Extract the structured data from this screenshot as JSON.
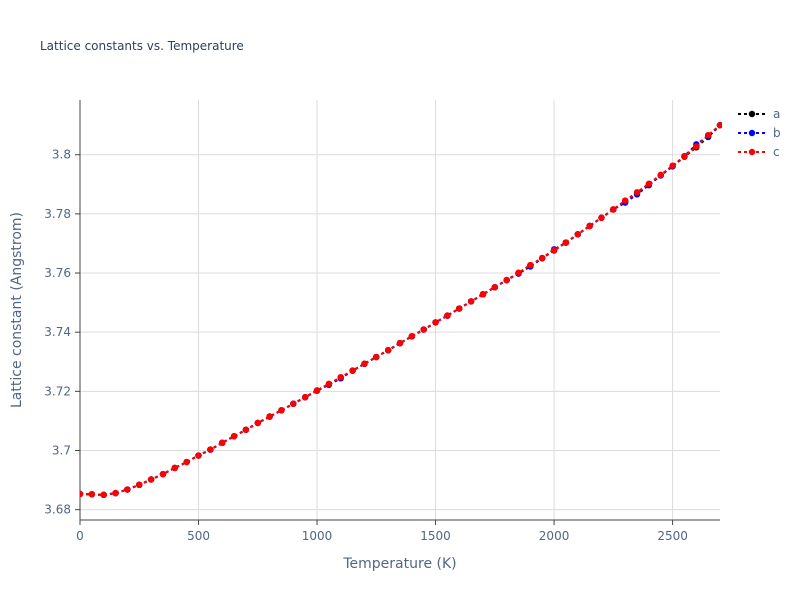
{
  "chart_data": {
    "type": "line",
    "title": "Lattice constants vs. Temperature",
    "xlabel": "Temperature (K)",
    "ylabel": "Lattice constant (Angstrom)",
    "xlim": [
      0,
      2700
    ],
    "ylim": [
      3.6765,
      3.8185
    ],
    "xticks": [
      0,
      500,
      1000,
      1500,
      2000,
      2500
    ],
    "yticks": [
      3.68,
      3.7,
      3.72,
      3.74,
      3.76,
      3.78,
      3.8
    ],
    "ytick_labels": [
      "3.68",
      "3.7",
      "3.72",
      "3.74",
      "3.76",
      "3.78",
      "3.8"
    ],
    "grid": true,
    "legend_position": "top-right",
    "x": [
      0,
      50,
      100,
      150,
      200,
      250,
      300,
      350,
      400,
      450,
      500,
      550,
      600,
      650,
      700,
      750,
      800,
      850,
      900,
      950,
      1000,
      1050,
      1100,
      1150,
      1200,
      1250,
      1300,
      1350,
      1400,
      1450,
      1500,
      1550,
      1600,
      1650,
      1700,
      1750,
      1800,
      1850,
      1900,
      1950,
      2000,
      2050,
      2100,
      2150,
      2200,
      2250,
      2300,
      2350,
      2400,
      2450,
      2500,
      2550,
      2600,
      2650,
      2700
    ],
    "series": [
      {
        "name": "a",
        "color": "#000000",
        "values": [
          3.6853,
          3.6852,
          3.685,
          3.6856,
          3.6868,
          3.6884,
          3.6902,
          3.692,
          3.6941,
          3.6961,
          3.6983,
          3.7003,
          3.7026,
          3.7048,
          3.707,
          3.7093,
          3.7115,
          3.7136,
          3.7158,
          3.718,
          3.7203,
          3.7225,
          3.7247,
          3.727,
          3.7293,
          3.7316,
          3.7339,
          3.7363,
          3.7386,
          3.7409,
          3.7433,
          3.7456,
          3.748,
          3.7504,
          3.7528,
          3.7552,
          3.7576,
          3.76,
          3.7625,
          3.765,
          3.7676,
          3.7703,
          3.7731,
          3.7759,
          3.7787,
          3.7815,
          3.7842,
          3.787,
          3.79,
          3.793,
          3.7961,
          3.7993,
          3.8025,
          3.806,
          3.81
        ]
      },
      {
        "name": "b",
        "color": "#0000ff",
        "values": [
          3.6853,
          3.6852,
          3.685,
          3.6856,
          3.6868,
          3.6884,
          3.6902,
          3.692,
          3.6941,
          3.6961,
          3.6983,
          3.7003,
          3.7026,
          3.7048,
          3.707,
          3.7093,
          3.7114,
          3.7136,
          3.7158,
          3.718,
          3.7202,
          3.7222,
          3.7244,
          3.727,
          3.7293,
          3.7316,
          3.7339,
          3.7363,
          3.7386,
          3.7409,
          3.7433,
          3.7456,
          3.748,
          3.7504,
          3.7528,
          3.7552,
          3.7576,
          3.7598,
          3.7622,
          3.765,
          3.768,
          3.7703,
          3.7731,
          3.7759,
          3.7787,
          3.7815,
          3.7838,
          3.7866,
          3.7897,
          3.793,
          3.7961,
          3.7995,
          3.8035,
          3.8063,
          3.81
        ]
      },
      {
        "name": "c",
        "color": "#ff0000",
        "values": [
          3.6853,
          3.6852,
          3.685,
          3.6856,
          3.6868,
          3.6884,
          3.6902,
          3.692,
          3.6941,
          3.6961,
          3.6983,
          3.7003,
          3.7026,
          3.7048,
          3.707,
          3.7093,
          3.7115,
          3.7136,
          3.7158,
          3.718,
          3.7203,
          3.7225,
          3.7248,
          3.727,
          3.7293,
          3.7316,
          3.7339,
          3.7363,
          3.7386,
          3.7409,
          3.7433,
          3.7456,
          3.748,
          3.7504,
          3.7528,
          3.7552,
          3.7576,
          3.7601,
          3.7627,
          3.7651,
          3.7677,
          3.7703,
          3.7731,
          3.7759,
          3.7787,
          3.7815,
          3.7845,
          3.7873,
          3.7902,
          3.7932,
          3.7963,
          3.7994,
          3.8028,
          3.8066,
          3.81
        ]
      }
    ]
  }
}
